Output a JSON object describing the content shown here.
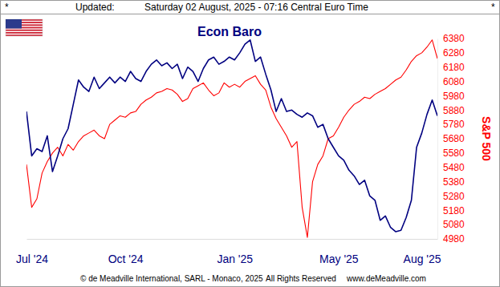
{
  "header": {
    "left_mark": "*",
    "label": "Updated:",
    "timestamp": "Saturday 02 August, 2025 - 07:16 Central Euro Time",
    "right_mark": "*"
  },
  "footer": {
    "copyright": "© de Meadville International, SARL - Monaco, 2025",
    "rights": "All Rights Reserved",
    "website": "www.deMeadville.com"
  },
  "chart_data": {
    "type": "line",
    "title": "Econ Baro",
    "y_label": "S&P 500",
    "categories": [
      null,
      "Jul '24",
      null,
      null,
      null,
      null,
      null,
      null,
      null,
      null,
      null,
      null,
      null,
      null,
      null,
      null,
      null,
      null,
      null,
      "Oct '24",
      null,
      null,
      null,
      null,
      null,
      null,
      null,
      null,
      null,
      null,
      null,
      null,
      null,
      null,
      null,
      null,
      null,
      null,
      null,
      null,
      "Jan '25",
      null,
      null,
      null,
      null,
      null,
      null,
      null,
      null,
      null,
      null,
      null,
      null,
      null,
      null,
      null,
      null,
      null,
      null,
      null,
      "May '25",
      null,
      null,
      null,
      null,
      null,
      null,
      null,
      null,
      null,
      null,
      null,
      null,
      null,
      null,
      null,
      "Aug '25",
      null,
      null,
      null
    ],
    "series": [
      {
        "color": "#000080",
        "values": [
          5870,
          5560,
          5610,
          5590,
          5700,
          5450,
          5560,
          5680,
          5750,
          5920,
          6090,
          6040,
          6010,
          6110,
          6030,
          6070,
          6110,
          6070,
          6110,
          6080,
          6150,
          6100,
          6080,
          6150,
          6200,
          6230,
          6190,
          6210,
          6170,
          6200,
          6100,
          6180,
          6150,
          6080,
          6170,
          6230,
          6250,
          6200,
          6220,
          6250,
          6230,
          6280,
          6340,
          6370,
          6220,
          6250,
          6130,
          6020,
          5870,
          5960,
          5870,
          5880,
          5850,
          5830,
          5860,
          5840,
          5760,
          5780,
          5680,
          5620,
          5560,
          5530,
          5460,
          5420,
          5360,
          5390,
          5280,
          5250,
          5110,
          5140,
          5060,
          5030,
          5040,
          5130,
          5250,
          5620,
          5720,
          5850,
          5950,
          5840
        ]
      },
      {
        "color": "#ff0000",
        "values": [
          5500,
          5200,
          5260,
          5440,
          5520,
          5580,
          5620,
          5560,
          5640,
          5600,
          5660,
          5700,
          5720,
          5740,
          5700,
          5680,
          5780,
          5810,
          5840,
          5830,
          5860,
          5870,
          5920,
          5950,
          5970,
          6000,
          6010,
          6030,
          6020,
          5990,
          5940,
          5960,
          6030,
          6050,
          6070,
          6020,
          5980,
          6000,
          6070,
          6040,
          6060,
          6040,
          6080,
          6100,
          6120,
          6060,
          6020,
          5900,
          5820,
          5760,
          5700,
          5620,
          5660,
          5200,
          4990,
          5380,
          5500,
          5560,
          5680,
          5700,
          5760,
          5830,
          5880,
          5920,
          5940,
          5970,
          5960,
          5990,
          6010,
          6030,
          6060,
          6090,
          6110,
          6160,
          6220,
          6260,
          6280,
          6320,
          6370,
          6240
        ]
      }
    ],
    "ylim": [
      4980,
      6380
    ],
    "yticks": [
      4980,
      5080,
      5180,
      5280,
      5380,
      5480,
      5580,
      5680,
      5780,
      5880,
      5980,
      6080,
      6180,
      6280,
      6380
    ]
  }
}
